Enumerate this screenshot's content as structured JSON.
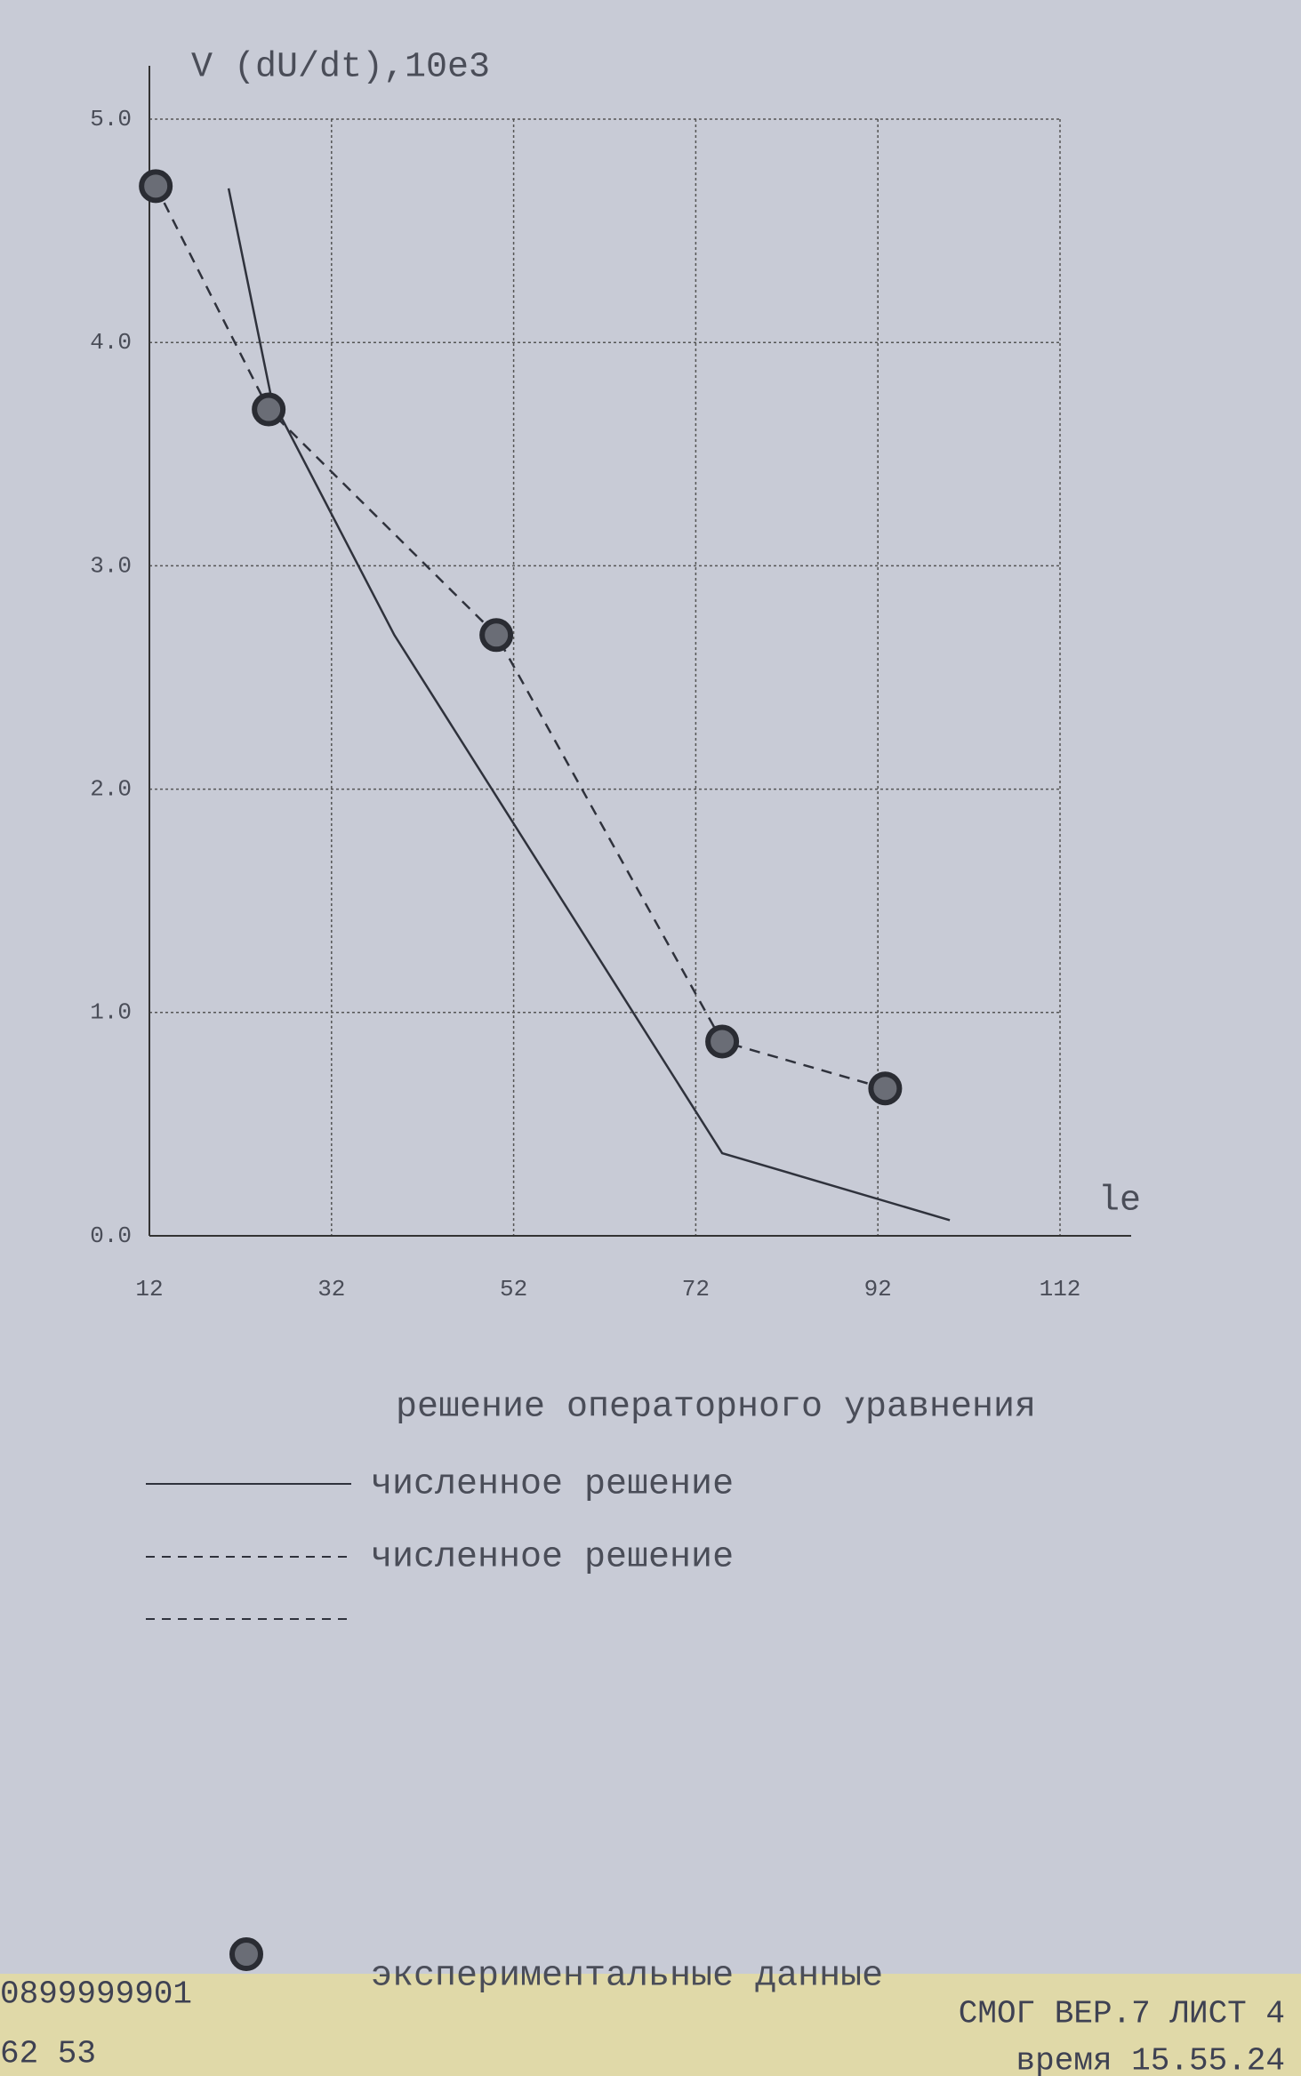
{
  "chart_data": {
    "type": "line",
    "y_label": "V (dU/dt),10e3",
    "x_label": "le",
    "xlim": [
      12,
      112
    ],
    "xticks": [
      12,
      32,
      52,
      72,
      92,
      112
    ],
    "ylim": [
      0,
      5
    ],
    "yticks": [
      {
        "value": 0,
        "label": "0.0"
      },
      {
        "value": 1,
        "label": "1.0"
      },
      {
        "value": 2,
        "label": "2.0"
      },
      {
        "value": 3,
        "label": "3.0"
      },
      {
        "value": 4,
        "label": "4.0"
      },
      {
        "value": 5,
        "label": "5.0"
      }
    ],
    "grid": true,
    "legend_title": "решение операторного уравнения",
    "series": [
      {
        "name": "численное решение",
        "color": "#2f323c",
        "dash": false,
        "markers": false,
        "x": [
          20.7,
          25.4,
          38.9,
          74.9,
          99.9
        ],
        "values": [
          4.69,
          3.75,
          2.69,
          0.37,
          0.07
        ]
      },
      {
        "name": "численное решение",
        "color": "#2f323c",
        "dash": true,
        "markers": true,
        "x": [
          12.7,
          25.1,
          50.1,
          74.9,
          92.8
        ],
        "values": [
          4.7,
          3.7,
          2.69,
          0.87,
          0.66
        ]
      }
    ],
    "marker_label": "экспериментальные данные"
  },
  "footer": {
    "code": "0899999901",
    "number": "62 53",
    "header": "СМОГ ВЕР.7 ЛИСТ 4",
    "time": "время 15.55.24"
  }
}
